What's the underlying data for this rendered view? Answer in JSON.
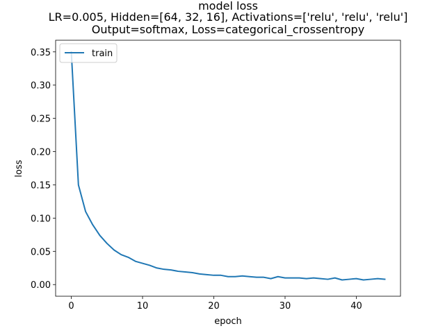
{
  "chart_data": {
    "type": "line",
    "title_lines": [
      "model loss",
      "LR=0.005, Hidden=[64, 32, 16], Activations=['relu', 'relu', 'relu']",
      "Output=softmax, Loss=categorical_crossentropy"
    ],
    "xlabel": "epoch",
    "ylabel": "loss",
    "xlim": [
      -2.2,
      46.2
    ],
    "ylim": [
      -0.0175,
      0.3675
    ],
    "xticks": [
      0,
      10,
      20,
      30,
      40
    ],
    "yticks": [
      0.0,
      0.05,
      0.1,
      0.15,
      0.2,
      0.25,
      0.3,
      0.35
    ],
    "ytick_labels": [
      "0.00",
      "0.05",
      "0.10",
      "0.15",
      "0.20",
      "0.25",
      "0.30",
      "0.35"
    ],
    "grid": false,
    "legend_position": "upper left",
    "series": [
      {
        "name": "train",
        "color": "#1f77b4",
        "x": [
          0,
          1,
          2,
          3,
          4,
          5,
          6,
          7,
          8,
          9,
          10,
          11,
          12,
          13,
          14,
          15,
          16,
          17,
          18,
          19,
          20,
          21,
          22,
          23,
          24,
          25,
          26,
          27,
          28,
          29,
          30,
          31,
          32,
          33,
          34,
          35,
          36,
          37,
          38,
          39,
          40,
          41,
          42,
          43,
          44
        ],
        "values": [
          0.35,
          0.15,
          0.11,
          0.09,
          0.074,
          0.062,
          0.052,
          0.045,
          0.041,
          0.035,
          0.032,
          0.029,
          0.025,
          0.023,
          0.022,
          0.02,
          0.019,
          0.018,
          0.016,
          0.015,
          0.014,
          0.014,
          0.012,
          0.012,
          0.013,
          0.012,
          0.011,
          0.011,
          0.009,
          0.012,
          0.01,
          0.01,
          0.01,
          0.009,
          0.01,
          0.009,
          0.008,
          0.01,
          0.007,
          0.008,
          0.009,
          0.007,
          0.008,
          0.009,
          0.008
        ]
      }
    ]
  }
}
